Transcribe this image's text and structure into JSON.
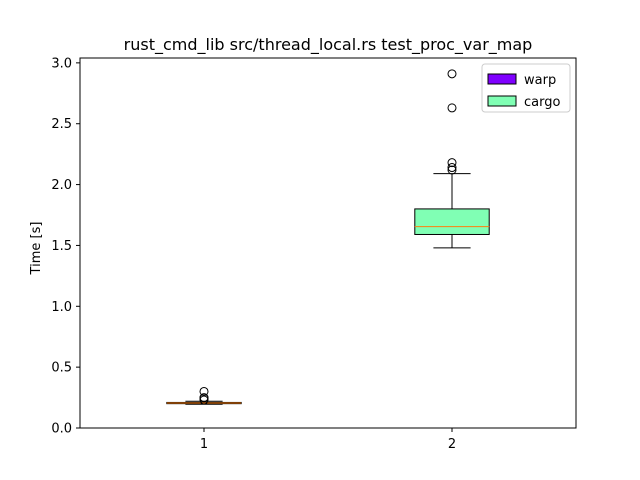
{
  "chart_data": {
    "type": "box",
    "title": "rust_cmd_lib src/thread_local.rs test_proc_var_map",
    "xlabel": "",
    "ylabel": "Time [s]",
    "ylim": [
      0,
      3.04
    ],
    "xlim": [
      0.5,
      2.5
    ],
    "x_ticks": [
      "1",
      "2"
    ],
    "y_ticks": [
      "0.0",
      "0.5",
      "1.0",
      "1.5",
      "2.0",
      "2.5",
      "3.0"
    ],
    "grid": false,
    "legend_position": "top-right",
    "series": [
      {
        "name": "warp",
        "position": 1,
        "color": "#7f00ff",
        "whisker_low": 0.195,
        "q1": 0.2,
        "median": 0.205,
        "q3": 0.21,
        "whisker_high": 0.22,
        "outliers": [
          0.23,
          0.245,
          0.25,
          0.3
        ]
      },
      {
        "name": "cargo",
        "position": 2,
        "color": "#80ffb4",
        "whisker_low": 1.48,
        "q1": 1.59,
        "median": 1.655,
        "q3": 1.8,
        "whisker_high": 2.09,
        "outliers": [
          2.12,
          2.14,
          2.18,
          2.63,
          2.91
        ]
      }
    ],
    "median_color": "#ff7f0e"
  }
}
